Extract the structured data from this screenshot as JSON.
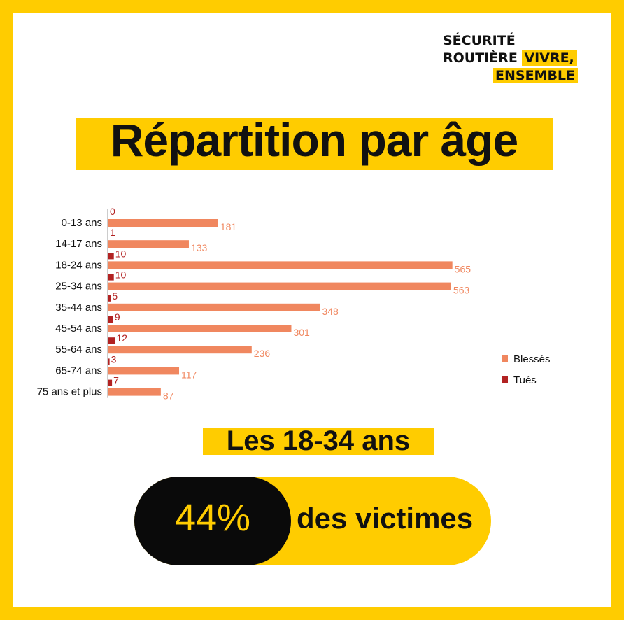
{
  "logo": {
    "line1": "SÉCURITÉ",
    "line2": "ROUTIÈRE",
    "line2_highlight": "VIVRE,",
    "line3_highlight": "ENSEMBLE"
  },
  "title": "Répartition par âge",
  "subtitle": "Les 18-34 ans",
  "highlight": {
    "value": "44%",
    "text": "des victimes"
  },
  "colors": {
    "background": "#FFCC00",
    "blesses": "#F0875F",
    "tues": "#B22222",
    "pill_dark": "#0A0A0A"
  },
  "chart_data": {
    "type": "bar",
    "orientation": "horizontal",
    "categories": [
      "0-13 ans",
      "14-17 ans",
      "18-24 ans",
      "25-34 ans",
      "35-44 ans",
      "45-54 ans",
      "55-64 ans",
      "65-74 ans",
      "75 ans et plus"
    ],
    "series": [
      {
        "name": "Tués",
        "values": [
          0,
          1,
          10,
          10,
          5,
          9,
          12,
          3,
          7
        ]
      },
      {
        "name": "Blessés",
        "values": [
          181,
          133,
          565,
          563,
          348,
          301,
          236,
          117,
          87
        ]
      }
    ],
    "legend": {
      "position": "right",
      "entries": [
        "Blessés",
        "Tués"
      ]
    },
    "xlim": [
      0,
      600
    ],
    "grid": false
  }
}
